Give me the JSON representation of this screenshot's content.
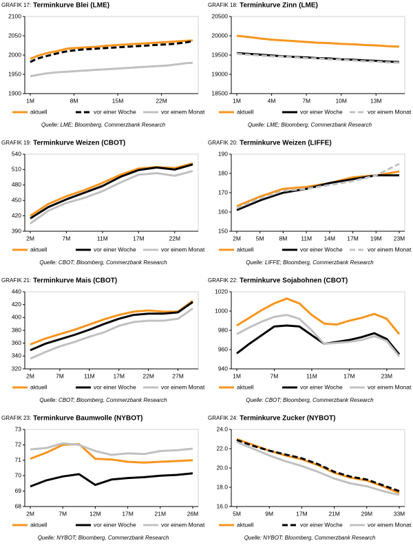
{
  "chart_data": [
    {
      "type": "line",
      "label": "GRAFIK 17:",
      "title": "Terminkurve Blei (LME)",
      "source": "Quelle: LME; Bloomberg, Commerzbank Research",
      "categories": [
        "1M",
        null,
        null,
        null,
        null,
        null,
        null,
        "8M",
        null,
        null,
        null,
        null,
        null,
        null,
        "15M",
        null,
        null,
        null,
        null,
        null,
        null,
        "22M",
        null,
        null,
        null,
        null,
        null
      ],
      "ylim": [
        1900,
        2100
      ],
      "yticks": [
        1900,
        1950,
        2000,
        2050,
        2100
      ],
      "series": [
        {
          "name": "aktuell",
          "color": "#f7941d",
          "dash": false,
          "values": [
            1990,
            1997,
            2002,
            2006,
            2009,
            2013,
            2017,
            2018,
            2019,
            2020,
            2021,
            2022,
            2024,
            2025,
            2026,
            2027,
            2028,
            2029,
            2030,
            2031,
            2032,
            2033,
            2034,
            2035,
            2036,
            2037,
            2038
          ]
        },
        {
          "name": "vor einer Woche",
          "color": "#000000",
          "dash": true,
          "values": [
            1982,
            1990,
            1995,
            1999,
            2003,
            2007,
            2010,
            2012,
            2014,
            2015,
            2016,
            2017,
            2018,
            2019,
            2020,
            2021,
            2022,
            2023,
            2024,
            2025,
            2026,
            2027,
            2028,
            2029,
            2031,
            2033,
            2036
          ]
        },
        {
          "name": "vor einem Monat",
          "color": "#c0c0c0",
          "dash": false,
          "values": [
            1945,
            1948,
            1951,
            1953,
            1955,
            1956,
            1957,
            1958,
            1959,
            1960,
            1961,
            1962,
            1963,
            1964,
            1965,
            1966,
            1967,
            1968,
            1969,
            1970,
            1971,
            1972,
            1973,
            1975,
            1977,
            1979,
            1980
          ]
        }
      ]
    },
    {
      "type": "line",
      "label": "GRAFIK 18:",
      "title": "Terminkurve Zinn (LME)",
      "source": "Quelle: LME; Bloomberg, Commerzbank Research",
      "categories": [
        "1M",
        null,
        null,
        "4M",
        null,
        null,
        "7M",
        null,
        null,
        "10M",
        null,
        null,
        "13M",
        null,
        null
      ],
      "ylim": [
        18500,
        20500
      ],
      "yticks": [
        18500,
        19000,
        19500,
        20000,
        20500
      ],
      "series": [
        {
          "name": "aktuell",
          "color": "#f7941d",
          "dash": false,
          "values": [
            20000,
            19970,
            19930,
            19900,
            19880,
            19860,
            19840,
            19820,
            19810,
            19790,
            19780,
            19760,
            19750,
            19730,
            19720
          ]
        },
        {
          "name": "vor einer Woche",
          "color": "#000000",
          "dash": false,
          "values": [
            19550,
            19530,
            19510,
            19490,
            19470,
            19450,
            19440,
            19420,
            19410,
            19390,
            19380,
            19360,
            19350,
            19330,
            19320
          ]
        },
        {
          "name": "vor einem Monat",
          "color": "#c0c0c0",
          "dash": true,
          "values": [
            19530,
            19510,
            19490,
            19470,
            19460,
            19440,
            19420,
            19410,
            19390,
            19380,
            19360,
            19340,
            19330,
            19310,
            19300
          ]
        }
      ]
    },
    {
      "type": "line",
      "label": "GRAFIK 19:",
      "title": "Terminkurve Weizen (CBOT)",
      "source": "Quelle: CBOT; Bloomberg, Commerzbank Research",
      "categories": [
        "2M",
        null,
        "7M",
        null,
        "11M",
        null,
        "17M",
        null,
        "22M",
        null
      ],
      "ylim": [
        390,
        540
      ],
      "yticks": [
        390,
        420,
        450,
        480,
        510,
        540
      ],
      "series": [
        {
          "name": "aktuell",
          "color": "#f7941d",
          "dash": false,
          "values": [
            420,
            443,
            458,
            470,
            484,
            500,
            512,
            515,
            513,
            522
          ]
        },
        {
          "name": "vor einer Woche",
          "color": "#000000",
          "dash": false,
          "values": [
            415,
            437,
            452,
            465,
            478,
            496,
            509,
            514,
            510,
            520
          ]
        },
        {
          "name": "vor einem Monat",
          "color": "#c0c0c0",
          "dash": false,
          "values": [
            405,
            430,
            445,
            455,
            468,
            485,
            500,
            503,
            498,
            507
          ]
        }
      ]
    },
    {
      "type": "line",
      "label": "GRAFIK 20:",
      "title": "Terminkurve Weizen (LIFFE)",
      "source": "Quelle: LIFFE; Bloomberg, Commerzbank Research",
      "categories": [
        "2M",
        "5M",
        "8M",
        "11M",
        "14M",
        "17M",
        "19M",
        "23M"
      ],
      "ylim": [
        150,
        190
      ],
      "yticks": [
        150,
        160,
        170,
        180,
        190
      ],
      "series": [
        {
          "name": "aktuell",
          "color": "#f7941d",
          "dash": false,
          "values": [
            163,
            168,
            172,
            173,
            175,
            178,
            179,
            181
          ]
        },
        {
          "name": "vor einer Woche",
          "color": "#000000",
          "dash": false,
          "values": [
            161,
            166,
            170,
            172,
            175,
            177,
            179,
            179
          ]
        },
        {
          "name": "vor einem Monat",
          "color": "#c0c0c0",
          "dash": true,
          "values": [
            162,
            167,
            171,
            172,
            174,
            176,
            179,
            185
          ]
        }
      ]
    },
    {
      "type": "line",
      "label": "GRAFIK 21:",
      "title": "Terminkurve Mais (CBOT)",
      "source": "Quelle: CBOT; Bloomberg, Commerzbank Research",
      "categories": [
        "2M",
        null,
        "7M",
        null,
        "11M",
        null,
        "17M",
        null,
        "22M",
        null,
        "27M",
        null
      ],
      "ylim": [
        320,
        440
      ],
      "yticks": [
        320,
        340,
        360,
        380,
        400,
        420,
        440
      ],
      "series": [
        {
          "name": "aktuell",
          "color": "#f7941d",
          "dash": false,
          "values": [
            358,
            367,
            374,
            381,
            389,
            397,
            404,
            409,
            411,
            409,
            409,
            426
          ]
        },
        {
          "name": "vor einer Woche",
          "color": "#000000",
          "dash": false,
          "values": [
            349,
            359,
            366,
            373,
            381,
            390,
            398,
            404,
            406,
            406,
            408,
            424
          ]
        },
        {
          "name": "vor einem Monat",
          "color": "#c0c0c0",
          "dash": false,
          "values": [
            336,
            346,
            355,
            362,
            370,
            377,
            387,
            393,
            395,
            395,
            398,
            414
          ]
        }
      ]
    },
    {
      "type": "line",
      "label": "GRAFIK 22:",
      "title": "Terminkurve Sojabohnen (CBOT)",
      "source": "Quelle: CBOT; Bloomberg, Commerzbank Research",
      "categories": [
        "1M",
        null,
        null,
        "7M",
        null,
        null,
        "11M",
        null,
        null,
        "17M",
        null,
        null,
        "23M",
        null
      ],
      "ylim": [
        940,
        1020
      ],
      "yticks": [
        940,
        960,
        980,
        1000,
        1020
      ],
      "series": [
        {
          "name": "aktuell",
          "color": "#f7941d",
          "dash": false,
          "values": [
            985,
            993,
            1001,
            1008,
            1013,
            1008,
            996,
            987,
            986,
            990,
            993,
            997,
            992,
            976
          ]
        },
        {
          "name": "vor einer Woche",
          "color": "#000000",
          "dash": false,
          "values": [
            956,
            966,
            975,
            984,
            985,
            984,
            975,
            966,
            968,
            970,
            973,
            977,
            971,
            955
          ]
        },
        {
          "name": "vor einem Monat",
          "color": "#c0c0c0",
          "dash": false,
          "values": [
            976,
            983,
            989,
            994,
            996,
            992,
            980,
            966,
            967,
            968,
            970,
            974,
            969,
            953
          ]
        }
      ]
    },
    {
      "type": "line",
      "label": "GRAFIK 23:",
      "title": "Terminkurve Baumwolle (NYBOT)",
      "source": "Quelle: NYBOT; Bloomberg, Commerzbank Research",
      "categories": [
        "2M",
        null,
        "7M",
        null,
        "12M",
        null,
        "17M",
        null,
        "21M",
        null,
        "26M"
      ],
      "ylim": [
        68,
        73
      ],
      "yticks": [
        68,
        69,
        70,
        71,
        72,
        73
      ],
      "series": [
        {
          "name": "aktuell",
          "color": "#f7941d",
          "dash": false,
          "values": [
            71.1,
            71.5,
            72.0,
            72.05,
            71.1,
            71.05,
            70.9,
            70.85,
            70.9,
            70.95,
            71.0
          ]
        },
        {
          "name": "vor einer Woche",
          "color": "#000000",
          "dash": false,
          "values": [
            69.3,
            69.7,
            69.95,
            70.1,
            69.4,
            69.75,
            69.85,
            69.9,
            70.0,
            70.05,
            70.15
          ]
        },
        {
          "name": "vor einem Monat",
          "color": "#c0c0c0",
          "dash": false,
          "values": [
            71.7,
            71.8,
            72.1,
            72.0,
            71.6,
            71.35,
            71.45,
            71.4,
            71.6,
            71.65,
            71.75
          ]
        }
      ]
    },
    {
      "type": "line",
      "label": "GRAFIK 24:",
      "title": "Terminkurve Zucker (NYBOT)",
      "source": "Quelle: NYBOT; Bloomberg, Commerzbank Research",
      "categories": [
        "5M",
        null,
        "9M",
        null,
        "17M",
        null,
        "21M",
        null,
        "29M",
        null,
        "33M"
      ],
      "ylim": [
        16,
        24
      ],
      "yticks": [
        {
          "value": 16,
          "label": "16.0"
        },
        {
          "value": 18,
          "label": "18.0"
        },
        {
          "value": 20,
          "label": "20.0"
        },
        {
          "value": 22,
          "label": "22.0"
        },
        {
          "value": 24,
          "label": "24.0"
        }
      ],
      "series": [
        {
          "name": "aktuell",
          "color": "#f7941d",
          "dash": false,
          "values": [
            23.0,
            22.4,
            21.8,
            21.3,
            20.9,
            20.3,
            19.5,
            19.0,
            18.7,
            18.1,
            17.4
          ]
        },
        {
          "name": "vor einer Woche",
          "color": "#000000",
          "dash": true,
          "values": [
            22.9,
            22.3,
            21.8,
            21.4,
            21.0,
            20.4,
            19.6,
            19.1,
            18.8,
            18.2,
            17.6
          ]
        },
        {
          "name": "vor einem Monat",
          "color": "#c0c0c0",
          "dash": false,
          "values": [
            22.7,
            22.0,
            21.3,
            20.7,
            20.2,
            19.6,
            18.9,
            18.4,
            18.1,
            17.6,
            17.2
          ]
        }
      ]
    }
  ]
}
